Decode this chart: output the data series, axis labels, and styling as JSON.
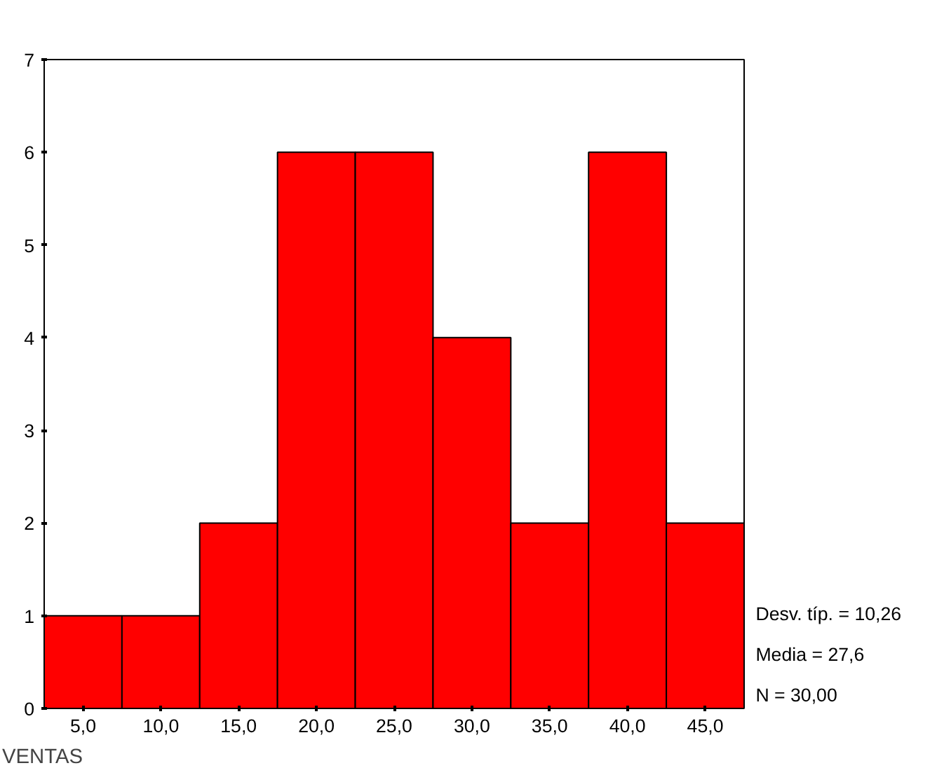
{
  "chart_data": {
    "type": "histogram",
    "xlabel": "VENTAS",
    "bins": [
      2.5,
      7.5,
      12.5,
      17.5,
      22.5,
      27.5,
      32.5,
      37.5,
      42.5,
      47.5
    ],
    "values": [
      1,
      1,
      2,
      6,
      6,
      4,
      2,
      6,
      2
    ],
    "color": "#ff0000",
    "xlim": [
      2.5,
      47.5
    ],
    "ylim": [
      0,
      7
    ],
    "xticks": [
      {
        "value": 5,
        "label": "5,0"
      },
      {
        "value": 10,
        "label": "10,0"
      },
      {
        "value": 15,
        "label": "15,0"
      },
      {
        "value": 20,
        "label": "20,0"
      },
      {
        "value": 25,
        "label": "25,0"
      },
      {
        "value": 30,
        "label": "30,0"
      },
      {
        "value": 35,
        "label": "35,0"
      },
      {
        "value": 40,
        "label": "40,0"
      },
      {
        "value": 45,
        "label": "45,0"
      }
    ],
    "yticks": [
      0,
      1,
      2,
      3,
      4,
      5,
      6,
      7
    ],
    "grid": false,
    "annotations": [
      "Desv. típ. = 10,26",
      "Media = 27,6",
      "N = 30,00"
    ]
  }
}
